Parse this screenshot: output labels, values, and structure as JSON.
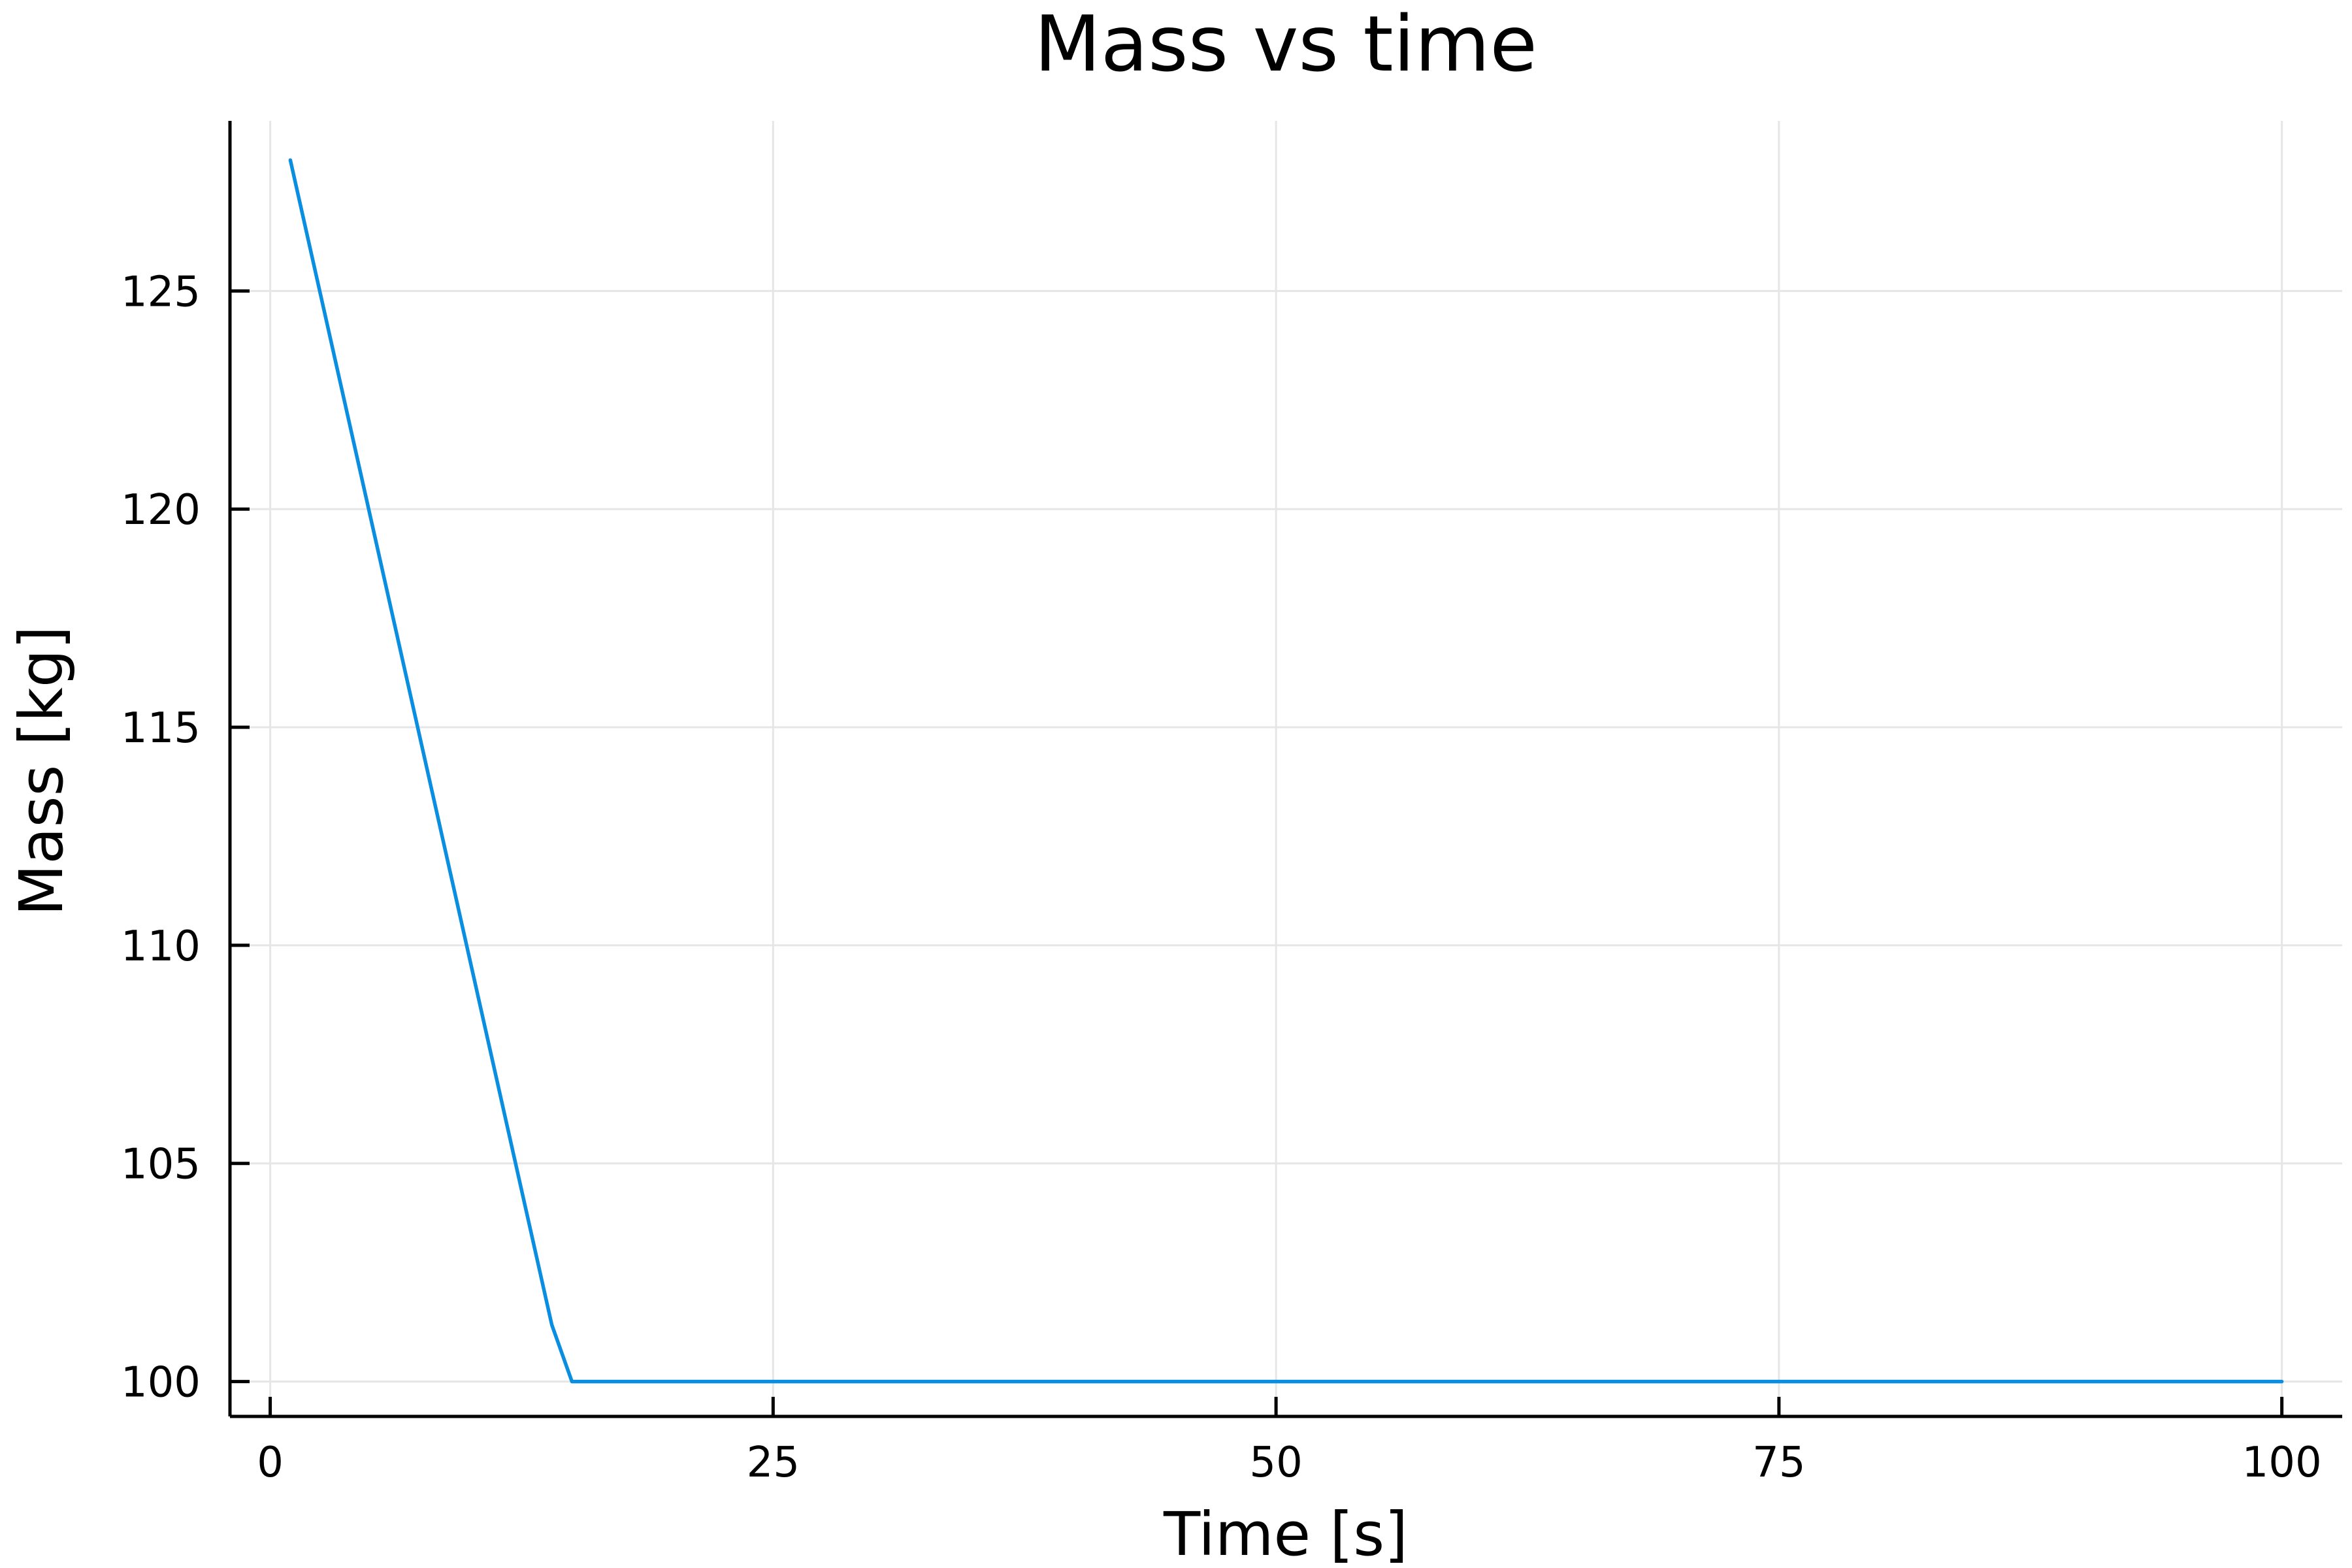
{
  "chart_data": {
    "type": "line",
    "title": "Mass vs time",
    "xlabel": "Time [s]",
    "ylabel": "Mass [kg]",
    "xlim": [
      -2,
      103
    ],
    "ylim": [
      99.2,
      128.9
    ],
    "xticks": [
      0,
      25,
      50,
      75,
      100
    ],
    "yticks": [
      100,
      105,
      110,
      115,
      120,
      125
    ],
    "grid": true,
    "legend": "none",
    "series": [
      {
        "color": "#0a8ee0",
        "x": [
          1,
          14,
          15,
          100
        ],
        "y": [
          128.0,
          101.3,
          100.0,
          100.0
        ]
      }
    ]
  }
}
